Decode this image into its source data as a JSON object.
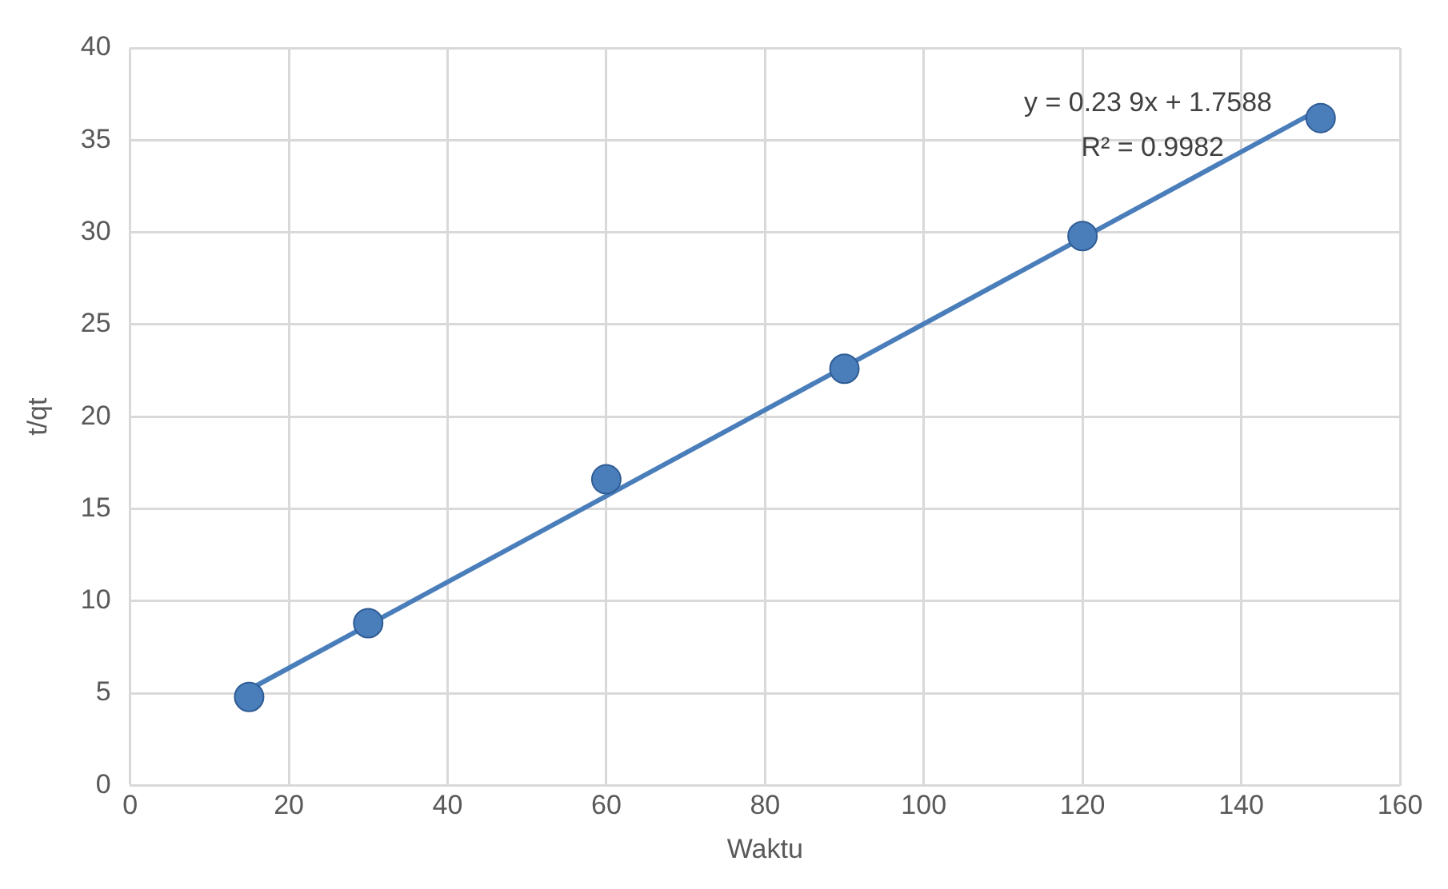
{
  "chart_data": {
    "type": "scatter",
    "xlabel": "Waktu",
    "ylabel": "t/qt",
    "series": [
      {
        "type": "scatter",
        "color": "#4a7ebb",
        "x": [
          15,
          30,
          60,
          90,
          120,
          150
        ],
        "values": [
          4.8,
          8.8,
          16.6,
          22.6,
          29.8,
          36.2
        ],
        "marker": "circle"
      },
      {
        "type": "line",
        "color": "#4a7ebb",
        "x": [
          15,
          150
        ],
        "values": [
          5.2,
          36.7
        ],
        "marker": "none",
        "line_style": "solid"
      }
    ],
    "annotations": [
      "y = 0.23 9x + 1.7588",
      "R² = 0.9982"
    ],
    "xlim": [
      0,
      160
    ],
    "xticks": [
      0,
      20,
      40,
      60,
      80,
      100,
      120,
      140,
      160
    ],
    "ylim": [
      0,
      40
    ],
    "yticks": [
      0,
      5,
      10,
      15,
      20,
      25,
      30,
      35,
      40
    ],
    "grid": true,
    "legend": false
  }
}
